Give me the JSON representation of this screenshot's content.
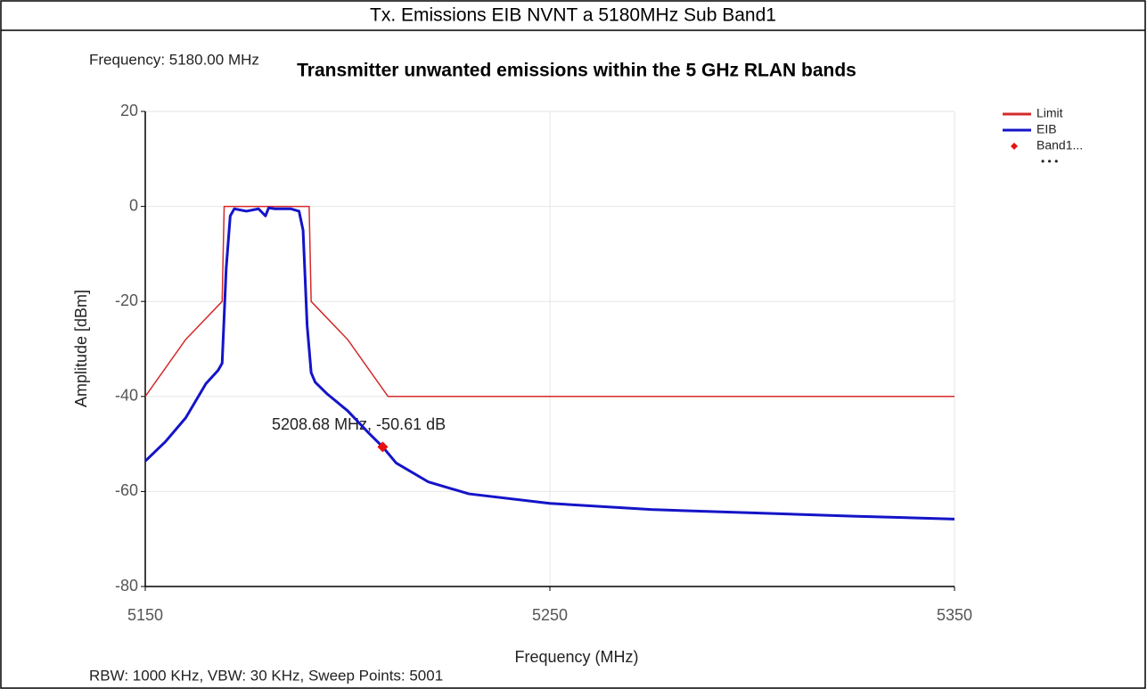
{
  "header": "Tx. Emissions EIB NVNT a 5180MHz Sub Band1",
  "chart_data": {
    "type": "line",
    "title": "Transmitter unwanted emissions within the 5 GHz RLAN bands",
    "subtitle": "Frequency: 5180.00 MHz",
    "x_label": "Frequency (MHz)",
    "y_label": "Amplitude [dBm]",
    "footnote": "RBW: 1000 KHz,  VBW: 30 KHz,  Sweep Points: 5001",
    "annotation": "5208.68 MHz, -50.61 dB",
    "legend_overflow": "• • •",
    "legend": "top-right",
    "grid": true,
    "xlim": [
      5150,
      5350
    ],
    "xticks": [
      5150,
      5250,
      5350
    ],
    "ylim": [
      -80,
      20
    ],
    "yticks": [
      20,
      0,
      -20,
      -40,
      -60,
      -80
    ],
    "series": [
      {
        "name": "Limit",
        "color": "#d42a2a",
        "style": "line",
        "x": [
          5150,
          5160,
          5169,
          5169.5,
          5190.5,
          5191,
          5200,
          5210,
          5350
        ],
        "values": [
          -40,
          -28,
          -20,
          0,
          0,
          -20,
          -28,
          -40,
          -40
        ]
      },
      {
        "name": "EIB",
        "color": "#1414c8",
        "style": "line",
        "x": [
          5150,
          5155,
          5160,
          5165,
          5168,
          5169,
          5170,
          5171,
          5172,
          5175,
          5178,
          5179.7,
          5180.5,
          5182,
          5186,
          5188,
          5189,
          5190,
          5191,
          5192,
          5195,
          5200,
          5205,
          5208.68,
          5212,
          5220,
          5230,
          5250,
          5275,
          5300,
          5325,
          5350
        ],
        "values": [
          -53.6,
          -49.5,
          -44.5,
          -37.3,
          -34.5,
          -33,
          -13,
          -2,
          -0.5,
          -1,
          -0.5,
          -2,
          -0.3,
          -0.5,
          -0.5,
          -1,
          -5,
          -25,
          -35,
          -37,
          -39.5,
          -43,
          -47.5,
          -50.61,
          -54,
          -58,
          -60.5,
          -62.5,
          -63.8,
          -64.5,
          -65.2,
          -65.8
        ]
      },
      {
        "name": "Band1...",
        "color": "#e81010",
        "style": "marker",
        "x": [
          5208.68
        ],
        "values": [
          -50.61
        ]
      }
    ]
  }
}
